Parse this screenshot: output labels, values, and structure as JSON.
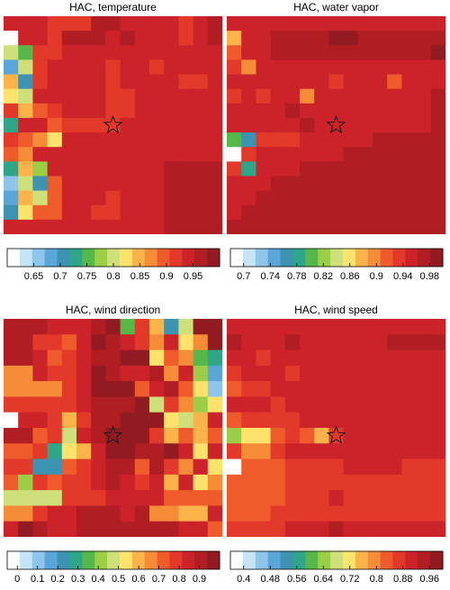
{
  "palette": [
    "#ffffff",
    "#c6e4f5",
    "#8dc6ea",
    "#5aa6d8",
    "#3c93b2",
    "#2fa688",
    "#55b848",
    "#9ccd47",
    "#cfe07a",
    "#fde26c",
    "#fbb34a",
    "#f68c37",
    "#ef5b2b",
    "#e2392a",
    "#cc2229",
    "#b01e24",
    "#921b21"
  ],
  "chart_data": [
    {
      "type": "heatmap",
      "title": "HAC, temperature",
      "colorbar": {
        "ticks": [
          0.65,
          0.7,
          0.75,
          0.8,
          0.85,
          0.9,
          0.95
        ],
        "tick_labels": [
          "0.65",
          "0.7",
          "0.75",
          "0.8",
          "0.85",
          "0.9",
          "0.95"
        ],
        "min": 0.6,
        "max": 1.0
      },
      "marker": {
        "row": 7,
        "col": 7,
        "symbol": "star"
      },
      "grid": [
        [
          14,
          14,
          14,
          13,
          13,
          13,
          15,
          15,
          14,
          14,
          14,
          14,
          13,
          14,
          15
        ],
        [
          0,
          14,
          14,
          13,
          15,
          15,
          15,
          14,
          15,
          14,
          14,
          14,
          13,
          14,
          15
        ],
        [
          8,
          6,
          13,
          13,
          14,
          14,
          14,
          14,
          14,
          14,
          14,
          14,
          14,
          14,
          14
        ],
        [
          3,
          8,
          13,
          14,
          14,
          14,
          14,
          13,
          14,
          14,
          13,
          14,
          14,
          14,
          14
        ],
        [
          10,
          4,
          13,
          14,
          14,
          14,
          14,
          13,
          14,
          14,
          14,
          14,
          13,
          13,
          14
        ],
        [
          9,
          8,
          14,
          14,
          14,
          14,
          14,
          13,
          13,
          14,
          14,
          14,
          14,
          14,
          14
        ],
        [
          13,
          10,
          12,
          13,
          14,
          14,
          14,
          13,
          13,
          14,
          14,
          14,
          14,
          14,
          14
        ],
        [
          5,
          14,
          14,
          12,
          13,
          13,
          13,
          13,
          14,
          14,
          14,
          14,
          14,
          14,
          14
        ],
        [
          13,
          12,
          11,
          9,
          14,
          14,
          14,
          14,
          14,
          14,
          14,
          14,
          14,
          14,
          14
        ],
        [
          12,
          11,
          14,
          14,
          14,
          14,
          14,
          14,
          14,
          14,
          14,
          14,
          14,
          14,
          14
        ],
        [
          5,
          10,
          7,
          14,
          14,
          14,
          14,
          14,
          14,
          14,
          14,
          15,
          15,
          15,
          15
        ],
        [
          2,
          8,
          4,
          12,
          14,
          14,
          14,
          14,
          14,
          14,
          14,
          15,
          15,
          15,
          15
        ],
        [
          3,
          10,
          8,
          12,
          14,
          14,
          14,
          13,
          14,
          14,
          14,
          15,
          15,
          15,
          15
        ],
        [
          4,
          9,
          12,
          12,
          14,
          14,
          13,
          13,
          14,
          14,
          14,
          15,
          15,
          15,
          15
        ],
        [
          14,
          14,
          14,
          14,
          14,
          14,
          14,
          14,
          14,
          14,
          14,
          15,
          15,
          15,
          15
        ]
      ]
    },
    {
      "type": "heatmap",
      "title": "HAC, water vapor",
      "colorbar": {
        "ticks": [
          0.7,
          0.74,
          0.78,
          0.82,
          0.86,
          0.9,
          0.94,
          0.98
        ],
        "tick_labels": [
          "0.7",
          "0.74",
          "0.78",
          "0.82",
          "0.86",
          "0.9",
          "0.94",
          "0.98"
        ],
        "min": 0.68,
        "max": 1.0
      },
      "marker": {
        "row": 7,
        "col": 7,
        "symbol": "star"
      },
      "grid": [
        [
          14,
          14,
          14,
          14,
          14,
          14,
          14,
          14,
          14,
          14,
          14,
          14,
          14,
          14,
          14
        ],
        [
          10,
          14,
          14,
          15,
          15,
          15,
          15,
          16,
          16,
          15,
          15,
          15,
          15,
          15,
          15
        ],
        [
          12,
          14,
          14,
          15,
          15,
          15,
          15,
          15,
          15,
          15,
          15,
          15,
          15,
          15,
          16
        ],
        [
          13,
          11,
          14,
          14,
          14,
          14,
          14,
          14,
          14,
          14,
          14,
          14,
          14,
          14,
          14
        ],
        [
          14,
          14,
          14,
          14,
          14,
          14,
          14,
          13,
          14,
          14,
          14,
          12,
          14,
          14,
          14
        ],
        [
          13,
          14,
          13,
          14,
          14,
          11,
          14,
          14,
          14,
          14,
          14,
          14,
          14,
          14,
          15
        ],
        [
          14,
          14,
          14,
          14,
          15,
          14,
          14,
          14,
          14,
          14,
          14,
          14,
          14,
          14,
          15
        ],
        [
          14,
          14,
          14,
          14,
          14,
          15,
          14,
          14,
          14,
          14,
          14,
          14,
          14,
          14,
          15
        ],
        [
          6,
          4,
          13,
          13,
          13,
          14,
          14,
          14,
          14,
          14,
          15,
          15,
          15,
          15,
          15
        ],
        [
          0,
          13,
          14,
          14,
          14,
          14,
          14,
          14,
          15,
          15,
          15,
          15,
          15,
          15,
          15
        ],
        [
          13,
          5,
          14,
          14,
          14,
          15,
          15,
          15,
          15,
          15,
          15,
          15,
          15,
          15,
          15
        ],
        [
          14,
          14,
          14,
          15,
          15,
          15,
          15,
          15,
          15,
          15,
          15,
          15,
          15,
          15,
          15
        ],
        [
          14,
          14,
          15,
          15,
          15,
          15,
          15,
          15,
          15,
          15,
          15,
          15,
          15,
          15,
          15
        ],
        [
          14,
          15,
          15,
          15,
          15,
          15,
          15,
          15,
          15,
          15,
          15,
          15,
          15,
          15,
          15
        ],
        [
          15,
          15,
          15,
          15,
          15,
          15,
          15,
          15,
          15,
          15,
          15,
          15,
          15,
          15,
          15
        ]
      ]
    },
    {
      "type": "heatmap",
      "title": "HAC, wind direction",
      "colorbar": {
        "ticks": [
          0,
          0.1,
          0.2,
          0.3,
          0.4,
          0.5,
          0.6,
          0.7,
          0.8,
          0.9
        ],
        "tick_labels": [
          "0",
          "0.1",
          "0.2",
          "0.3",
          "0.4",
          "0.5",
          "0.6",
          "0.7",
          "0.8",
          "0.9"
        ],
        "min": -0.05,
        "max": 1.0
      },
      "marker": {
        "row": 7,
        "col": 7,
        "symbol": "star"
      },
      "grid": [
        [
          15,
          15,
          15,
          14,
          14,
          14,
          15,
          16,
          6,
          13,
          10,
          4,
          8,
          16,
          16
        ],
        [
          15,
          15,
          13,
          13,
          12,
          14,
          16,
          15,
          14,
          13,
          11,
          14,
          9,
          11,
          16
        ],
        [
          15,
          15,
          14,
          12,
          13,
          14,
          15,
          15,
          16,
          16,
          9,
          12,
          11,
          6,
          5
        ],
        [
          11,
          11,
          14,
          13,
          13,
          14,
          16,
          15,
          14,
          14,
          15,
          11,
          14,
          7,
          3
        ],
        [
          11,
          11,
          11,
          11,
          13,
          14,
          16,
          16,
          16,
          12,
          14,
          15,
          12,
          9,
          2
        ],
        [
          13,
          13,
          13,
          13,
          13,
          14,
          15,
          15,
          15,
          16,
          8,
          13,
          11,
          7,
          9
        ],
        [
          0,
          14,
          14,
          13,
          10,
          13,
          15,
          15,
          16,
          16,
          16,
          9,
          8,
          10,
          14
        ],
        [
          15,
          15,
          12,
          13,
          8,
          14,
          15,
          16,
          16,
          16,
          13,
          10,
          12,
          10,
          12
        ],
        [
          12,
          12,
          13,
          5,
          9,
          10,
          14,
          16,
          16,
          15,
          15,
          16,
          14,
          9,
          14
        ],
        [
          13,
          13,
          4,
          4,
          12,
          13,
          14,
          15,
          15,
          12,
          15,
          13,
          11,
          14,
          9
        ],
        [
          12,
          7,
          13,
          12,
          13,
          13,
          14,
          15,
          14,
          13,
          14,
          10,
          14,
          9,
          11
        ],
        [
          8,
          8,
          8,
          8,
          13,
          13,
          13,
          14,
          14,
          14,
          14,
          12,
          12,
          12,
          12
        ],
        [
          11,
          11,
          13,
          14,
          14,
          15,
          15,
          15,
          14,
          15,
          11,
          11,
          10,
          10,
          14
        ],
        [
          14,
          16,
          15,
          14,
          14,
          15,
          15,
          15,
          15,
          15,
          15,
          15,
          14,
          14,
          12
        ]
      ]
    },
    {
      "type": "heatmap",
      "title": "HAC, wind speed",
      "colorbar": {
        "ticks": [
          0.4,
          0.48,
          0.56,
          0.64,
          0.72,
          0.8,
          0.88,
          0.96
        ],
        "tick_labels": [
          "0.4",
          "0.48",
          "0.56",
          "0.64",
          "0.72",
          "0.8",
          "0.88",
          "0.96"
        ],
        "min": 0.36,
        "max": 1.0
      },
      "marker": {
        "row": 7,
        "col": 7,
        "symbol": "star"
      },
      "grid": [
        [
          14,
          14,
          14,
          14,
          14,
          14,
          14,
          14,
          14,
          14,
          14,
          14,
          14,
          14,
          14
        ],
        [
          15,
          14,
          14,
          14,
          15,
          14,
          14,
          14,
          14,
          14,
          14,
          15,
          15,
          15,
          15
        ],
        [
          14,
          14,
          13,
          14,
          14,
          14,
          14,
          14,
          14,
          14,
          14,
          14,
          14,
          14,
          14
        ],
        [
          13,
          14,
          14,
          14,
          13,
          14,
          14,
          14,
          14,
          14,
          14,
          14,
          14,
          14,
          14
        ],
        [
          12,
          13,
          13,
          14,
          14,
          14,
          14,
          14,
          14,
          14,
          14,
          14,
          14,
          14,
          14
        ],
        [
          14,
          14,
          14,
          13,
          14,
          14,
          14,
          14,
          14,
          14,
          14,
          14,
          14,
          14,
          14
        ],
        [
          12,
          13,
          13,
          13,
          13,
          14,
          14,
          14,
          14,
          14,
          14,
          14,
          14,
          14,
          14
        ],
        [
          7,
          9,
          9,
          12,
          13,
          12,
          10,
          13,
          14,
          14,
          14,
          14,
          14,
          14,
          14
        ],
        [
          13,
          11,
          11,
          13,
          14,
          14,
          14,
          14,
          14,
          14,
          14,
          14,
          14,
          14,
          14
        ],
        [
          0,
          12,
          12,
          12,
          13,
          13,
          13,
          13,
          14,
          14,
          14,
          14,
          13,
          13,
          13
        ],
        [
          12,
          12,
          12,
          12,
          13,
          13,
          13,
          13,
          13,
          13,
          13,
          13,
          13,
          13,
          13
        ],
        [
          12,
          12,
          12,
          12,
          13,
          13,
          13,
          14,
          13,
          13,
          13,
          13,
          13,
          13,
          13
        ],
        [
          12,
          12,
          12,
          13,
          13,
          13,
          13,
          13,
          13,
          13,
          13,
          13,
          13,
          13,
          13
        ],
        [
          13,
          13,
          13,
          13,
          14,
          14,
          14,
          15,
          14,
          14,
          14,
          14,
          14,
          14,
          14
        ]
      ]
    }
  ]
}
